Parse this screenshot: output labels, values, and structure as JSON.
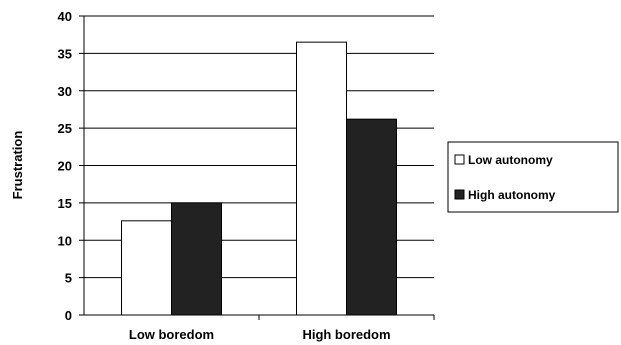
{
  "chart_data": {
    "type": "bar",
    "title": "",
    "xlabel": "",
    "ylabel": "Frustration",
    "categories": [
      "Low boredom",
      "High boredom"
    ],
    "series": [
      {
        "name": "Low autonomy",
        "values": [
          12.6,
          36.5
        ],
        "color": "#ffffff"
      },
      {
        "name": "High autonomy",
        "values": [
          15.0,
          26.2
        ],
        "color": "#222222"
      }
    ],
    "ylim": [
      0,
      40
    ],
    "yticks": [
      "0",
      "5",
      "10",
      "15",
      "20",
      "25",
      "30",
      "35",
      "40"
    ],
    "grid": "horizontal",
    "legend": "right"
  }
}
